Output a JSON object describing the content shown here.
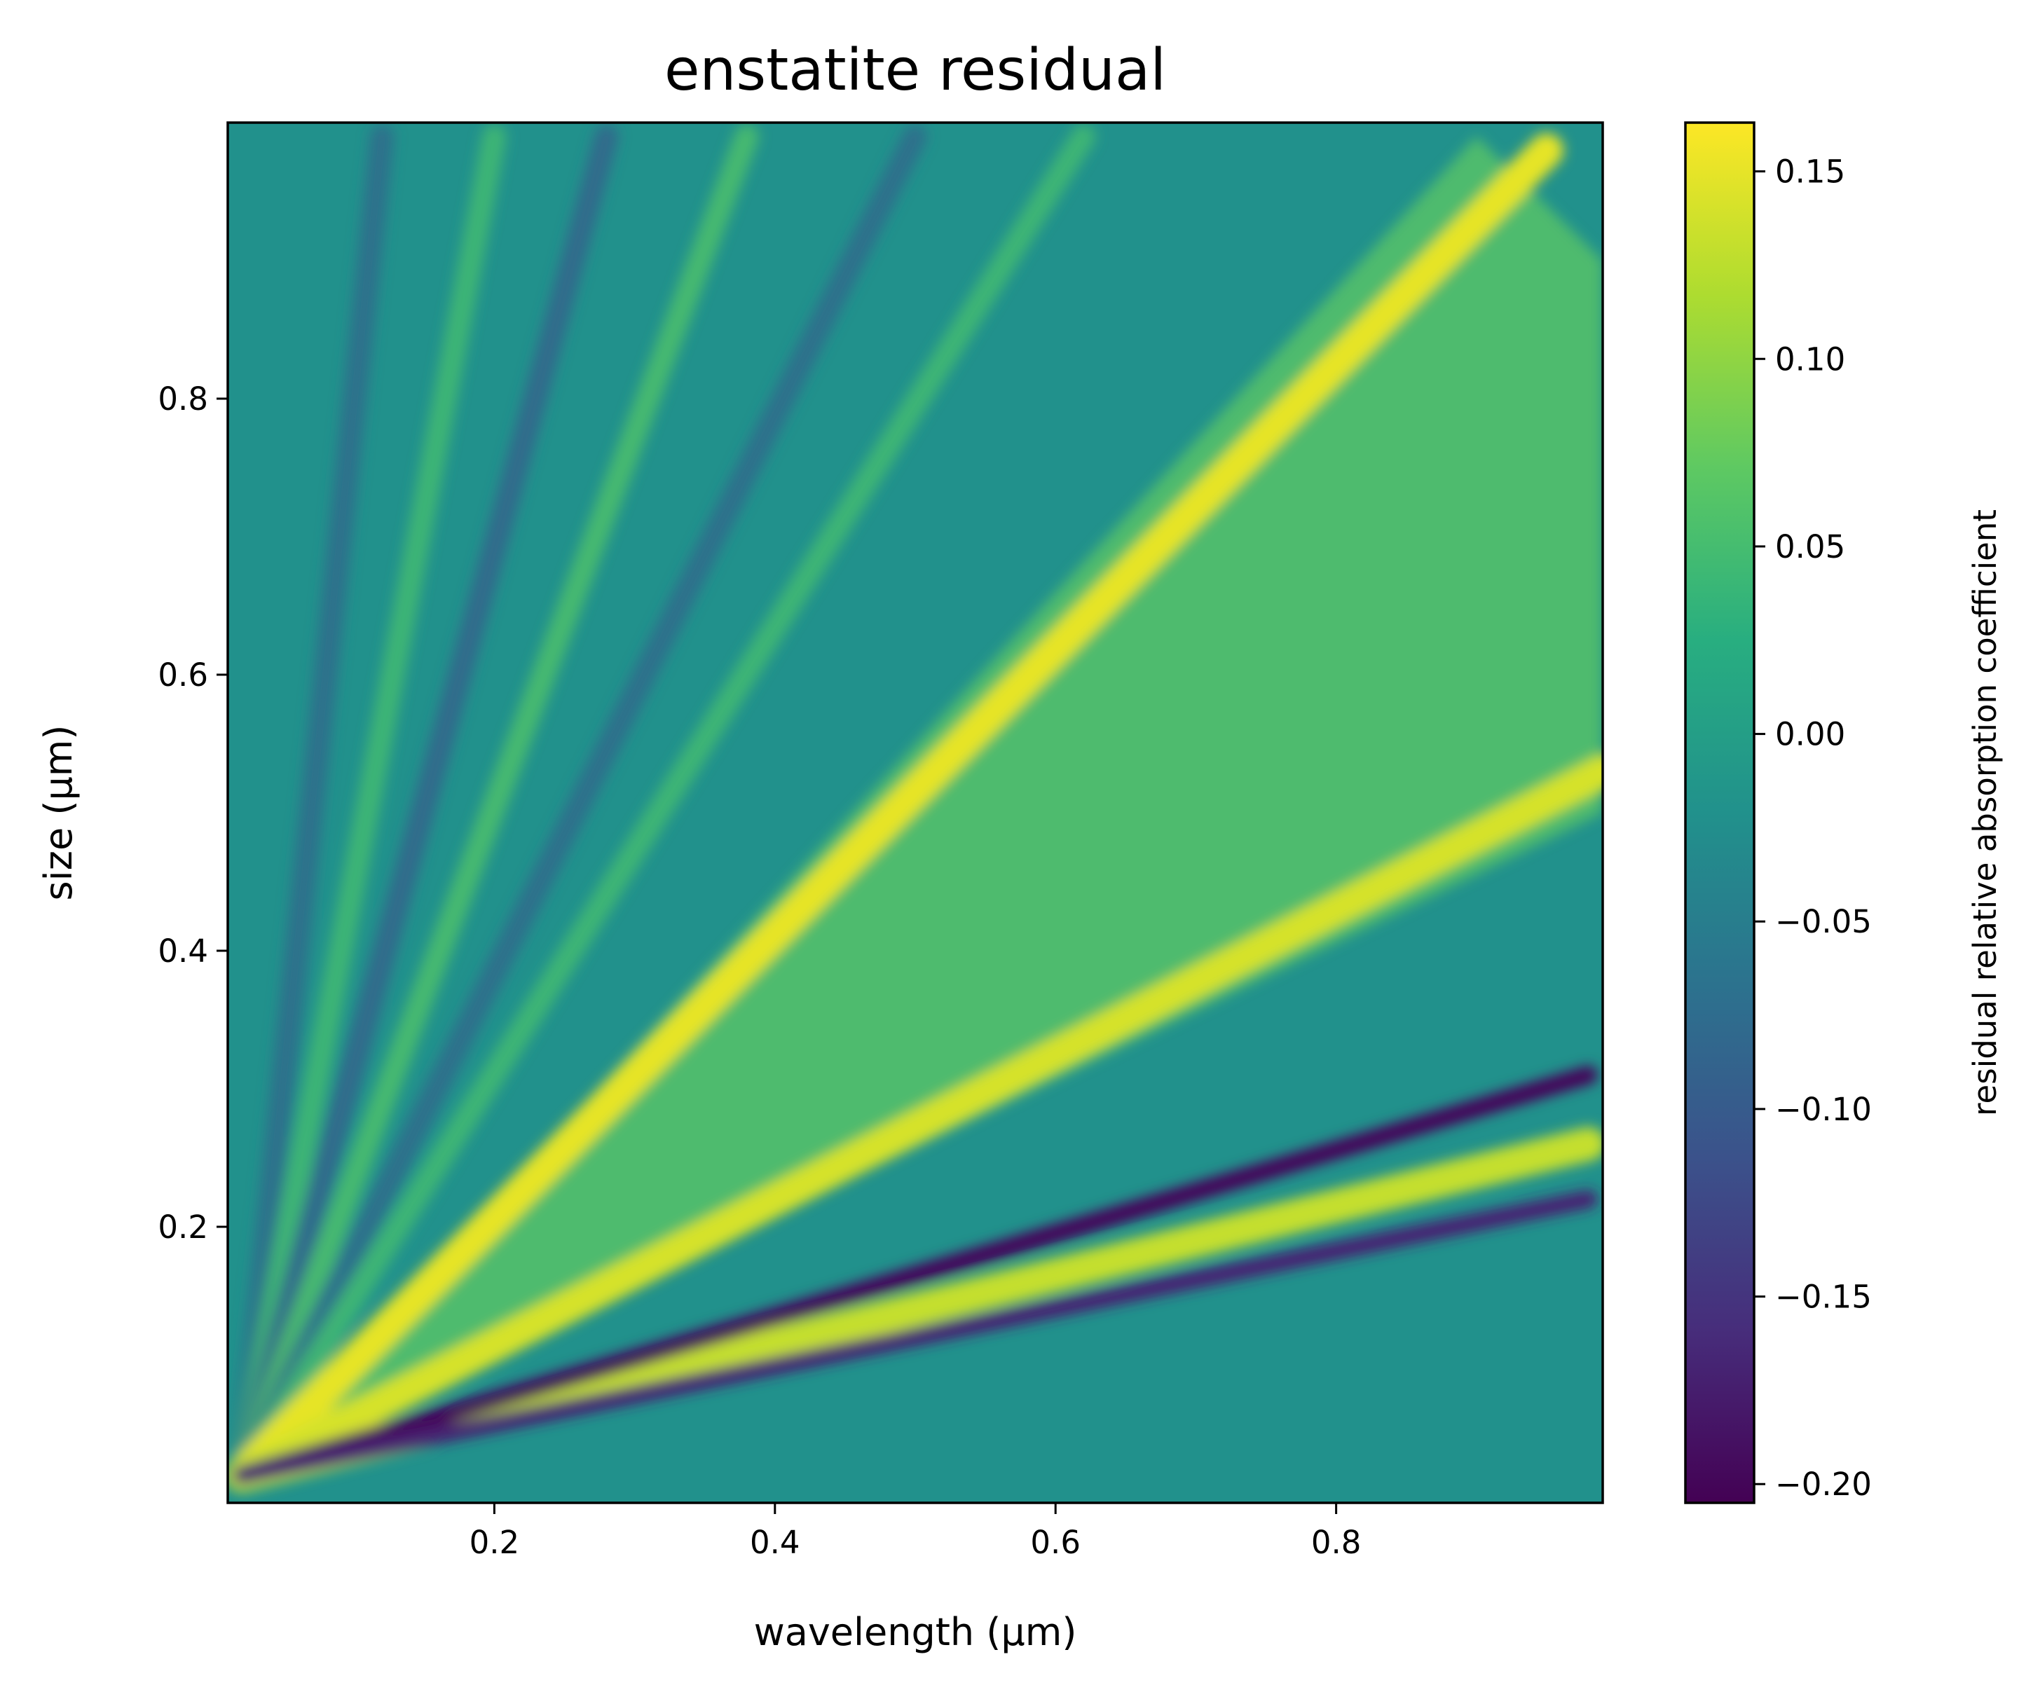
{
  "chart_data": {
    "type": "heatmap",
    "title": "enstatite residual",
    "xlabel": "wavelength (μm)",
    "ylabel": "size (μm)",
    "xlim": [
      0.01,
      0.99
    ],
    "ylim": [
      0.0,
      1.0
    ],
    "x_ticks": [
      0.2,
      0.4,
      0.6,
      0.8
    ],
    "x_tick_labels": [
      "0.2",
      "0.4",
      "0.6",
      "0.8"
    ],
    "y_ticks": [
      0.2,
      0.4,
      0.6,
      0.8
    ],
    "y_tick_labels": [
      "0.2",
      "0.4",
      "0.6",
      "0.8"
    ],
    "colormap": "viridis",
    "colorbar": {
      "label": "residual relative absorption coefficient",
      "range": [
        -0.205,
        0.163
      ],
      "ticks": [
        0.15,
        0.1,
        0.05,
        0.0,
        -0.05,
        -0.1,
        -0.15,
        -0.2
      ],
      "tick_labels": [
        "0.15",
        "0.10",
        "0.05",
        "0.00",
        "−0.05",
        "−0.10",
        "−0.15",
        "−0.20"
      ]
    },
    "features": [
      {
        "description": "positive ridge",
        "from": [
          0.02,
          0.02
        ],
        "to": [
          0.95,
          0.98
        ],
        "value": 0.15
      },
      {
        "description": "positive ridge",
        "from": [
          0.02,
          0.02
        ],
        "to": [
          0.99,
          0.53
        ],
        "value": 0.14
      },
      {
        "description": "positive ridge",
        "from": [
          0.02,
          0.02
        ],
        "to": [
          0.98,
          0.26
        ],
        "value": 0.13
      },
      {
        "description": "negative trough",
        "from": [
          0.02,
          0.02
        ],
        "to": [
          0.98,
          0.31
        ],
        "value": -0.2
      },
      {
        "description": "negative trough",
        "from": [
          0.02,
          0.02
        ],
        "to": [
          0.98,
          0.22
        ],
        "value": -0.17
      },
      {
        "description": "near-zero region below wedge",
        "value": 0.0
      }
    ],
    "grid": false,
    "legend": "none"
  }
}
